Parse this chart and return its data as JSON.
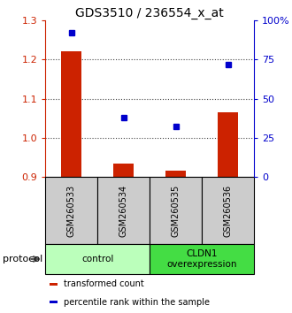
{
  "title": "GDS3510 / 236554_x_at",
  "samples": [
    "GSM260533",
    "GSM260534",
    "GSM260535",
    "GSM260536"
  ],
  "transformed_counts": [
    1.22,
    0.935,
    0.915,
    1.065
  ],
  "percentile_ranks": [
    92,
    38,
    32,
    72
  ],
  "left_ylim": [
    0.9,
    1.3
  ],
  "left_yticks": [
    0.9,
    1.0,
    1.1,
    1.2,
    1.3
  ],
  "right_ylim": [
    0,
    100
  ],
  "right_yticks": [
    0,
    25,
    50,
    75,
    100
  ],
  "right_yticklabels": [
    "0",
    "25",
    "50",
    "75",
    "100%"
  ],
  "left_ytick_color": "#cc2200",
  "right_ytick_color": "#0000cc",
  "bar_color": "#cc2200",
  "dot_color": "#0000cc",
  "bar_width": 0.38,
  "groups": [
    {
      "label": "control",
      "samples": [
        0,
        1
      ],
      "color": "#bbffbb"
    },
    {
      "label": "CLDN1\noverexpression",
      "samples": [
        2,
        3
      ],
      "color": "#44dd44"
    }
  ],
  "sample_box_color": "#cccccc",
  "dotted_line_color": "#444444",
  "legend_items": [
    {
      "color": "#cc2200",
      "label": "transformed count"
    },
    {
      "color": "#0000cc",
      "label": "percentile rank within the sample"
    }
  ],
  "protocol_text": "protocol"
}
